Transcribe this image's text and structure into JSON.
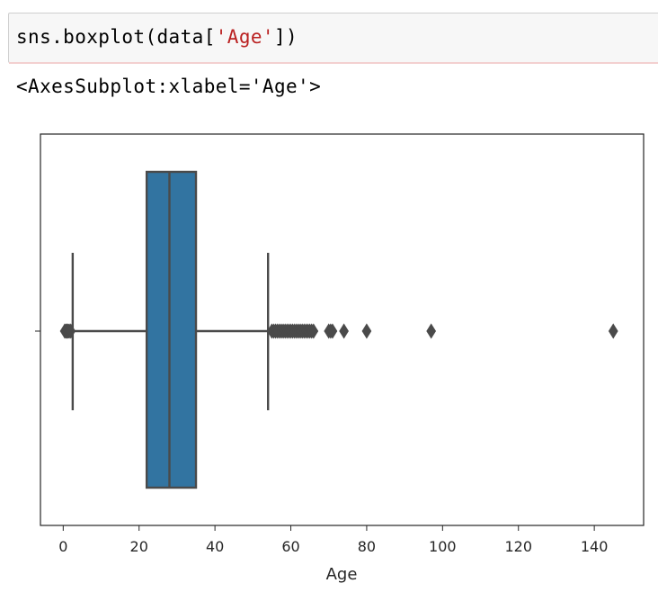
{
  "cell": {
    "code_prefix": "sns.boxplot(data[",
    "code_string": "'Age'",
    "code_suffix": "])"
  },
  "output": {
    "repr": "<AxesSubplot:xlabel='Age'>"
  },
  "colors": {
    "box_fill": "#3274a1",
    "line": "#4a4a4a",
    "string": "#ba2121"
  },
  "chart_data": {
    "type": "box",
    "orientation": "horizontal",
    "xlabel": "Age",
    "xlim": [
      -6,
      153
    ],
    "xticks": [
      0,
      20,
      40,
      60,
      80,
      100,
      120,
      140
    ],
    "xtick_labels": [
      "0",
      "20",
      "40",
      "60",
      "80",
      "100",
      "120",
      "140"
    ],
    "box": {
      "whisker_low": 2.5,
      "q1": 22,
      "median": 28,
      "q3": 35,
      "whisker_high": 54
    },
    "outliers": [
      0.4,
      0.7,
      1,
      1.3,
      1.6,
      2,
      55,
      55.5,
      56,
      56.5,
      57,
      57.5,
      58,
      58.5,
      59,
      59.5,
      60,
      60.5,
      61,
      61.5,
      62,
      62.5,
      63,
      63.5,
      64,
      64.5,
      65,
      65.5,
      66,
      70,
      70.5,
      71,
      74,
      80,
      97,
      145
    ]
  }
}
